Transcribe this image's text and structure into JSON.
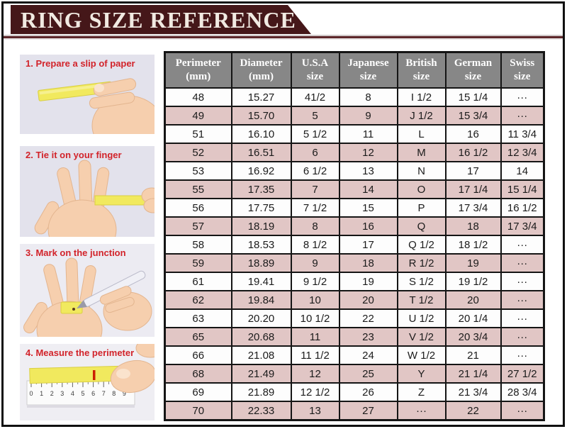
{
  "banner": {
    "title": "RING SIZE REFERENCE"
  },
  "steps": [
    {
      "label": "1. Prepare a slip of paper"
    },
    {
      "label": "2. Tie it on your finger"
    },
    {
      "label": "3. Mark on the junction"
    },
    {
      "label": "4. Measure the perimeter",
      "ruler_numbers": [
        "0",
        "1",
        "2",
        "3",
        "4",
        "5",
        "6",
        "7",
        "8",
        "9"
      ]
    }
  ],
  "chart_data": {
    "type": "table",
    "title": "RING SIZE REFERENCE",
    "columns": [
      "Perimeter (mm)",
      "Diameter (mm)",
      "U.S.A size",
      "Japanese size",
      "British size",
      "German size",
      "Swiss size"
    ],
    "column_headers": [
      [
        "Perimeter",
        "(mm)"
      ],
      [
        "Diameter",
        "(mm)"
      ],
      [
        "U.S.A",
        "size"
      ],
      [
        "Japanese",
        "size"
      ],
      [
        "British",
        "size"
      ],
      [
        "German",
        "size"
      ],
      [
        "Swiss",
        "size"
      ]
    ],
    "rows": [
      [
        "48",
        "15.27",
        "41/2",
        "8",
        "I 1/2",
        "15 1/4",
        "···"
      ],
      [
        "49",
        "15.70",
        "5",
        "9",
        "J 1/2",
        "15 3/4",
        "···"
      ],
      [
        "51",
        "16.10",
        "5 1/2",
        "11",
        "L",
        "16",
        "11 3/4"
      ],
      [
        "52",
        "16.51",
        "6",
        "12",
        "M",
        "16 1/2",
        "12 3/4"
      ],
      [
        "53",
        "16.92",
        "6 1/2",
        "13",
        "N",
        "17",
        "14"
      ],
      [
        "55",
        "17.35",
        "7",
        "14",
        "O",
        "17 1/4",
        "15 1/4"
      ],
      [
        "56",
        "17.75",
        "7 1/2",
        "15",
        "P",
        "17 3/4",
        "16 1/2"
      ],
      [
        "57",
        "18.19",
        "8",
        "16",
        "Q",
        "18",
        "17 3/4"
      ],
      [
        "58",
        "18.53",
        "8 1/2",
        "17",
        "Q 1/2",
        "18 1/2",
        "···"
      ],
      [
        "59",
        "18.89",
        "9",
        "18",
        "R 1/2",
        "19",
        "···"
      ],
      [
        "61",
        "19.41",
        "9 1/2",
        "19",
        "S 1/2",
        "19 1/2",
        "···"
      ],
      [
        "62",
        "19.84",
        "10",
        "20",
        "T 1/2",
        "20",
        "···"
      ],
      [
        "63",
        "20.20",
        "10 1/2",
        "22",
        "U 1/2",
        "20 1/4",
        "···"
      ],
      [
        "65",
        "20.68",
        "11",
        "23",
        "V 1/2",
        "20 3/4",
        "···"
      ],
      [
        "66",
        "21.08",
        "11 1/2",
        "24",
        "W 1/2",
        "21",
        "···"
      ],
      [
        "68",
        "21.49",
        "12",
        "25",
        "Y",
        "21 1/4",
        "27 1/2"
      ],
      [
        "69",
        "21.89",
        "12 1/2",
        "26",
        "Z",
        "21 3/4",
        "28 3/4"
      ],
      [
        "70",
        "22.33",
        "13",
        "27",
        "···",
        "22",
        "···"
      ]
    ],
    "layout": {
      "stripe_colors": [
        "#fdfdfd",
        "#e1c6c5"
      ],
      "header_background": "#878787",
      "grid": true
    }
  },
  "colors": {
    "banner_maroon": "#451719",
    "header_gray": "#878787",
    "stripe_pink": "#e1c6c5",
    "table_border": "#151515",
    "step_label_red": "#d2232a",
    "paper_yellow": "#f1e95e",
    "mark_red": "#cc1f00"
  }
}
